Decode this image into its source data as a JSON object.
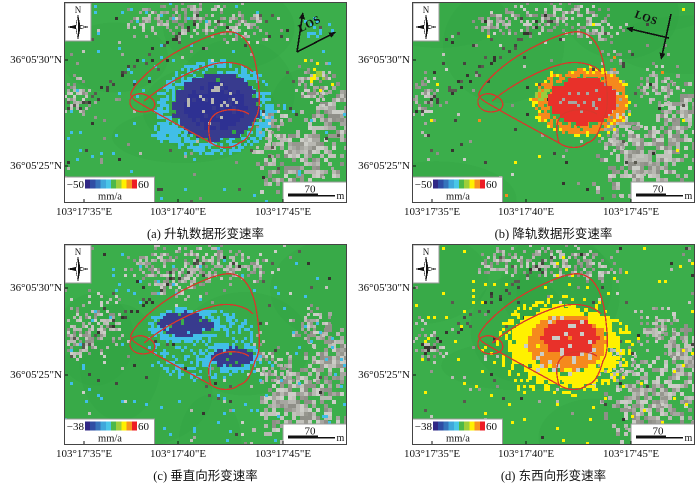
{
  "figure": {
    "compass_label": "N",
    "scalebar": {
      "value": "70",
      "unit": "m"
    },
    "colors": {
      "map_green": "#3BAE4B",
      "map_green_dark": "#2F9E40",
      "outline_red": "#D8372B",
      "core_navy": "#383B8E",
      "fringe_cyan": "#41BEE8",
      "core_red": "#E8312A",
      "ring_orange": "#F5891D",
      "ring_yellow": "#FFF100",
      "accent_greenyellow": "#9BCB3C",
      "terrain_gray": "#B5B5AF",
      "colormap": [
        "#312886",
        "#2F4DA4",
        "#3673BB",
        "#3FA7DB",
        "#49C6E8",
        "#4DB848",
        "#9FCE3A",
        "#FFF100",
        "#F7941D",
        "#ED1C24"
      ]
    },
    "panels": [
      {
        "id": "a",
        "caption": "(a) 升轨数据形变速率",
        "los_label": "LOS",
        "lat_labels": [
          "36°05'30\"N",
          "36°05'25\"N"
        ],
        "lon_labels": [
          "103°17'35\"E",
          "103°17'40\"E",
          "103°17'45\"E"
        ],
        "colorbar": {
          "min": "−50",
          "max": "60",
          "unit": "mm/a"
        }
      },
      {
        "id": "b",
        "caption": "(b) 降轨数据形变速率",
        "los_label": "LOS",
        "lat_labels": [
          "36°05'30\"N",
          "36°05'25\"N"
        ],
        "lon_labels": [
          "103°17'35\"E",
          "103°17'40\"E",
          "103°17'45\"E"
        ],
        "colorbar": {
          "min": "−50",
          "max": "60",
          "unit": "mm/a"
        }
      },
      {
        "id": "c",
        "caption": "(c) 垂直向形变速率",
        "lat_labels": [
          "36°05'30\"N",
          "36°05'25\"N"
        ],
        "lon_labels": [
          "103°17'35\"E",
          "103°17'40\"E",
          "103°17'45\"E"
        ],
        "colorbar": {
          "min": "−38",
          "max": "60",
          "unit": "mm/a"
        }
      },
      {
        "id": "d",
        "caption": "(d) 东西向形变速率",
        "lat_labels": [
          "36°05'30\"N",
          "36°05'25\"N"
        ],
        "lon_labels": [
          "103°17'35\"E",
          "103°17'40\"E",
          "103°17'45\"E"
        ],
        "colorbar": {
          "min": "−38",
          "max": "60",
          "unit": "mm/a"
        }
      }
    ]
  }
}
